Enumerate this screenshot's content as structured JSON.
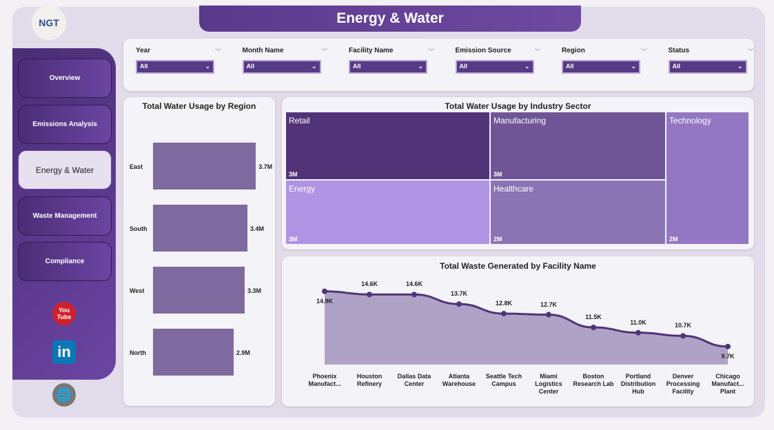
{
  "title": "Energy & Water",
  "logo": "NGT",
  "nav": [
    {
      "label": "Overview"
    },
    {
      "label": "Emissions Analysis"
    },
    {
      "label": "Energy & Water",
      "active": true
    },
    {
      "label": "Waste Management"
    },
    {
      "label": "Compliance"
    }
  ],
  "social": {
    "youtube": "You Tube",
    "linkedin": "in"
  },
  "filters": [
    {
      "label": "Year",
      "value": "All"
    },
    {
      "label": "Month Name",
      "value": "All"
    },
    {
      "label": "Facility Name",
      "value": "All"
    },
    {
      "label": "Emission Source",
      "value": "All"
    },
    {
      "label": "Region",
      "value": "All"
    },
    {
      "label": "Status",
      "value": "All"
    }
  ],
  "chart_data": [
    {
      "type": "bar",
      "orientation": "horizontal",
      "title": "Total Water Usage by Region",
      "categories": [
        "East",
        "South",
        "West",
        "North"
      ],
      "values": [
        3.7,
        3.4,
        3.3,
        2.9
      ],
      "labels": [
        "3.7M",
        "3.4M",
        "3.3M",
        "2.9M"
      ],
      "color": "#7f6a9f"
    },
    {
      "type": "treemap",
      "title": "Total Water Usage by Industry Sector",
      "categories": [
        "Retail",
        "Energy",
        "Manufacturing",
        "Healthcare",
        "Technology"
      ],
      "labels": [
        "3M",
        "3M",
        "3M",
        "2M",
        "2M"
      ],
      "colors": [
        "#523378",
        "#b193e3",
        "#705596",
        "#8b74b3",
        "#9477c2"
      ]
    },
    {
      "type": "area",
      "title": "Total Waste Generated by Facility Name",
      "categories": [
        "Phoenix Manufact...",
        "Houston Refinery",
        "Dallas Data Center",
        "Atlanta Warehouse",
        "Seattle Tech Campus",
        "Miami Logistics Center",
        "Boston Research Lab",
        "Portland Distribution Hub",
        "Denver Processing Facility",
        "Chicago Manufact... Plant"
      ],
      "values": [
        14.9,
        14.6,
        14.6,
        13.7,
        12.8,
        12.7,
        11.5,
        11.0,
        10.7,
        9.7
      ],
      "labels": [
        "14.9K",
        "14.6K",
        "14.6K",
        "13.7K",
        "12.8K",
        "12.7K",
        "11.5K",
        "11.0K",
        "10.7K",
        "9.7K"
      ],
      "ylim": [
        8,
        15
      ],
      "line_color": "#4f3478",
      "fill_color": "#b0a2c6"
    }
  ]
}
